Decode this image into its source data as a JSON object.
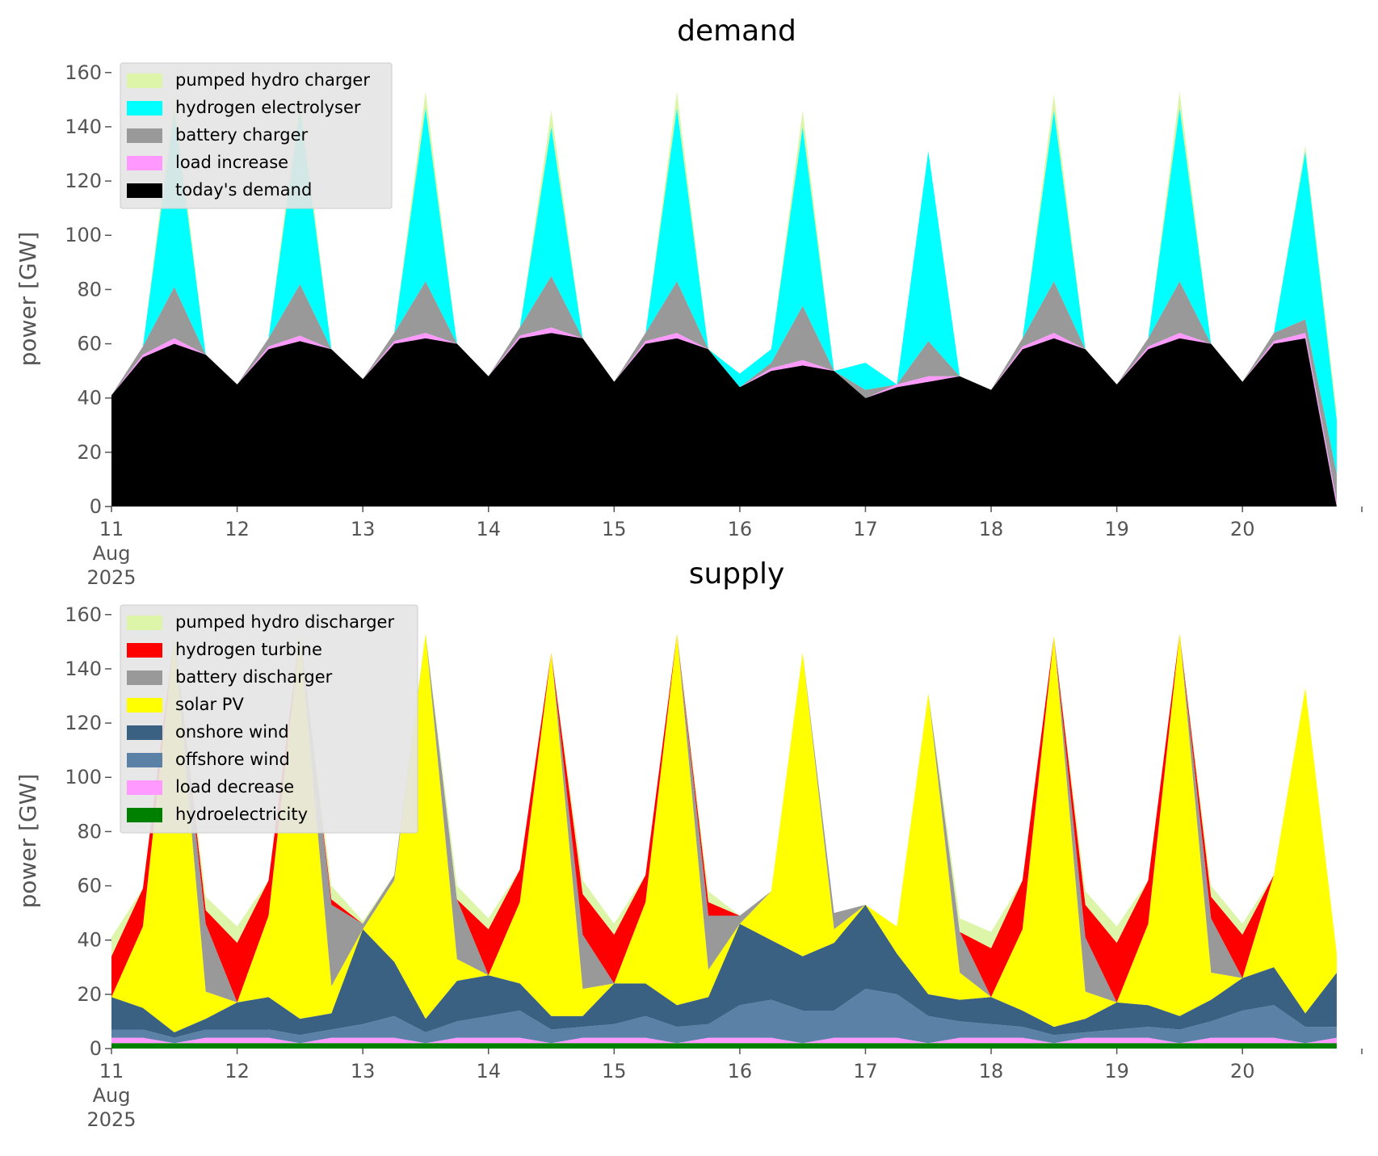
{
  "chart_data": [
    {
      "type": "area",
      "title": "demand",
      "ylabel": "power [GW]",
      "legend": "upper left",
      "x": [
        11,
        11.25,
        11.5,
        11.75,
        12,
        12.25,
        12.5,
        12.75,
        13,
        13.25,
        13.5,
        13.75,
        14,
        14.25,
        14.5,
        14.75,
        15,
        15.25,
        15.5,
        15.75,
        16,
        16.25,
        16.5,
        16.75,
        17,
        17.25,
        17.5,
        17.75,
        18,
        18.25,
        18.5,
        18.75,
        19,
        19.25,
        19.5,
        19.75,
        20,
        20.25,
        20.5,
        20.75
      ],
      "xlim": [
        11,
        20.95
      ],
      "xticks": [
        {
          "value": 11,
          "label": "11\nAug\n2025"
        },
        12,
        13,
        14,
        15,
        16,
        17,
        18,
        19,
        20
      ],
      "ylim": [
        0,
        165
      ],
      "yticks": [
        0,
        20,
        40,
        60,
        80,
        100,
        120,
        140,
        160
      ],
      "series": [
        {
          "name": "pumped hydro charger",
          "color": "#dcf5a8",
          "values": [
            0,
            0,
            6,
            0,
            0,
            0,
            6,
            0,
            0,
            0,
            6,
            0,
            0,
            0,
            6,
            0,
            0,
            0,
            6,
            0,
            0,
            0,
            6,
            0,
            0,
            0,
            0,
            0,
            0,
            0,
            6,
            0,
            0,
            0,
            6,
            0,
            0,
            0,
            2,
            3
          ]
        },
        {
          "name": "hydrogen electrolyser",
          "color": "#00ffff",
          "values": [
            0,
            0,
            65,
            0,
            0,
            0,
            65,
            0,
            0,
            0,
            64,
            0,
            0,
            0,
            55,
            0,
            0,
            0,
            64,
            0,
            5,
            5,
            66,
            0,
            10,
            0,
            70,
            0,
            0,
            0,
            63,
            0,
            0,
            0,
            64,
            0,
            0,
            0,
            62,
            20
          ]
        },
        {
          "name": "battery charger",
          "color": "#999999",
          "values": [
            0,
            3,
            19,
            0,
            0,
            3,
            19,
            0,
            0,
            3,
            19,
            0,
            0,
            3,
            19,
            0,
            0,
            3,
            19,
            0,
            0,
            2,
            20,
            0,
            3,
            0,
            13,
            0,
            0,
            3,
            19,
            0,
            0,
            3,
            19,
            0,
            0,
            3,
            5,
            10
          ]
        },
        {
          "name": "load increase",
          "color": "#ff99ff",
          "values": [
            0,
            1,
            2,
            0,
            0,
            1,
            2,
            0,
            0,
            1,
            2,
            0,
            0,
            1,
            2,
            0,
            0,
            1,
            2,
            0,
            0,
            1,
            2,
            0,
            0,
            1,
            2,
            0,
            0,
            1,
            2,
            0,
            0,
            1,
            2,
            0,
            0,
            1,
            2,
            2
          ]
        },
        {
          "name": "today's demand",
          "color": "#000000",
          "values": [
            41,
            55,
            60,
            56,
            45,
            58,
            61,
            58,
            47,
            60,
            62,
            60,
            48,
            62,
            64,
            62,
            46,
            60,
            62,
            58,
            44,
            50,
            52,
            50,
            40,
            44,
            46,
            48,
            43,
            58,
            62,
            58,
            45,
            58,
            62,
            60,
            46,
            60,
            62,
            0
          ]
        }
      ]
    },
    {
      "type": "area",
      "title": "supply",
      "ylabel": "power [GW]",
      "legend": "upper left",
      "x": [
        11,
        11.25,
        11.5,
        11.75,
        12,
        12.25,
        12.5,
        12.75,
        13,
        13.25,
        13.5,
        13.75,
        14,
        14.25,
        14.5,
        14.75,
        15,
        15.25,
        15.5,
        15.75,
        16,
        16.25,
        16.5,
        16.75,
        17,
        17.25,
        17.5,
        17.75,
        18,
        18.25,
        18.5,
        18.75,
        19,
        19.25,
        19.5,
        19.75,
        20,
        20.25,
        20.5,
        20.75
      ],
      "xlim": [
        11,
        20.95
      ],
      "xticks": [
        {
          "value": 11,
          "label": "11\nAug\n2025"
        },
        12,
        13,
        14,
        15,
        16,
        17,
        18,
        19,
        20
      ],
      "ylim": [
        0,
        165
      ],
      "yticks": [
        0,
        20,
        40,
        60,
        80,
        100,
        120,
        140,
        160
      ],
      "series": [
        {
          "name": "pumped hydro discharger",
          "color": "#dcf5a8",
          "values": [
            7,
            0,
            0,
            5,
            6,
            0,
            0,
            5,
            1,
            0,
            0,
            5,
            4,
            0,
            0,
            5,
            4,
            0,
            0,
            4,
            0,
            0,
            0,
            0,
            0,
            0,
            0,
            5,
            6,
            0,
            0,
            5,
            6,
            0,
            0,
            4,
            4,
            0,
            0,
            0
          ]
        },
        {
          "name": "hydrogen turbine",
          "color": "#ff0000",
          "values": [
            15,
            14,
            0,
            5,
            22,
            13,
            0,
            2,
            0,
            0,
            0,
            0,
            17,
            12,
            0,
            15,
            18,
            10,
            0,
            5,
            0,
            0,
            0,
            0,
            0,
            0,
            0,
            0,
            18,
            18,
            0,
            12,
            22,
            16,
            0,
            8,
            16,
            0,
            0,
            0
          ]
        },
        {
          "name": "battery discharger",
          "color": "#999999",
          "values": [
            0,
            0,
            0,
            25,
            0,
            0,
            0,
            30,
            2,
            2,
            0,
            22,
            0,
            0,
            0,
            20,
            0,
            0,
            0,
            20,
            3,
            0,
            0,
            6,
            0,
            0,
            0,
            15,
            0,
            0,
            0,
            20,
            0,
            0,
            0,
            20,
            0,
            0,
            0,
            0
          ]
        },
        {
          "name": "solar PV",
          "color": "#ffff00",
          "values": [
            0,
            30,
            146,
            10,
            0,
            30,
            142,
            10,
            0,
            30,
            142,
            8,
            0,
            30,
            134,
            10,
            0,
            30,
            137,
            10,
            0,
            18,
            112,
            5,
            0,
            10,
            111,
            10,
            0,
            30,
            144,
            10,
            0,
            30,
            141,
            10,
            0,
            34,
            120,
            7
          ]
        },
        {
          "name": "onshore wind",
          "color": "#3b6182",
          "values": [
            12,
            8,
            2,
            4,
            10,
            12,
            6,
            6,
            35,
            20,
            5,
            15,
            15,
            10,
            5,
            4,
            15,
            12,
            8,
            10,
            30,
            22,
            20,
            25,
            31,
            15,
            8,
            8,
            10,
            6,
            3,
            5,
            10,
            8,
            5,
            8,
            12,
            14,
            5,
            20
          ]
        },
        {
          "name": "offshore wind",
          "color": "#5b82a6",
          "values": [
            3,
            3,
            2,
            3,
            3,
            3,
            3,
            3,
            5,
            8,
            4,
            6,
            8,
            10,
            5,
            4,
            5,
            8,
            6,
            5,
            12,
            14,
            12,
            10,
            18,
            16,
            10,
            6,
            5,
            4,
            3,
            2,
            3,
            4,
            5,
            6,
            10,
            12,
            6,
            4
          ]
        },
        {
          "name": "load decrease",
          "color": "#ff99ff",
          "values": [
            2,
            2,
            0,
            2,
            2,
            2,
            0,
            2,
            2,
            2,
            0,
            2,
            2,
            2,
            0,
            2,
            2,
            2,
            0,
            2,
            2,
            2,
            0,
            2,
            2,
            2,
            0,
            2,
            2,
            2,
            0,
            2,
            2,
            2,
            0,
            2,
            2,
            2,
            0,
            2
          ]
        },
        {
          "name": "hydroelectricity",
          "color": "#008000",
          "values": [
            2,
            2,
            2,
            2,
            2,
            2,
            2,
            2,
            2,
            2,
            2,
            2,
            2,
            2,
            2,
            2,
            2,
            2,
            2,
            2,
            2,
            2,
            2,
            2,
            2,
            2,
            2,
            2,
            2,
            2,
            2,
            2,
            2,
            2,
            2,
            2,
            2,
            2,
            2,
            2
          ]
        }
      ]
    }
  ]
}
